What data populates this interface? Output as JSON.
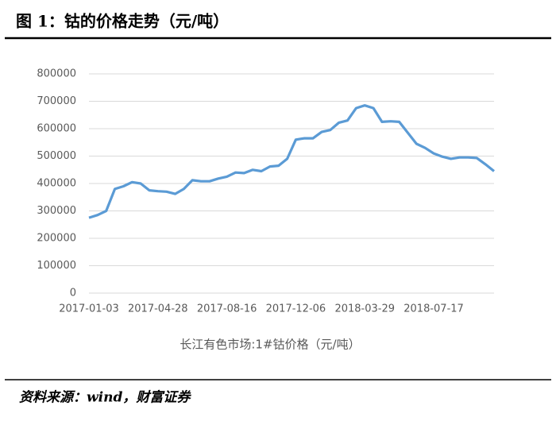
{
  "header": {
    "title": "图 1：钴的价格走势（元/吨）"
  },
  "chart_data": {
    "type": "line",
    "categories": [
      "2017-01-03",
      null,
      null,
      null,
      null,
      null,
      null,
      null,
      "2017-04-28",
      null,
      null,
      null,
      null,
      null,
      null,
      null,
      "2017-08-16",
      null,
      null,
      null,
      null,
      null,
      null,
      null,
      "2017-12-06",
      null,
      null,
      null,
      null,
      null,
      null,
      null,
      "2018-03-29",
      null,
      null,
      null,
      null,
      null,
      null,
      null,
      "2018-07-17",
      null,
      null,
      null,
      null,
      null,
      null,
      null
    ],
    "series": [
      {
        "name": "长江有色市场:1#钴价格（元/吨）",
        "color": "#5b9bd5",
        "values": [
          275000,
          285000,
          300000,
          380000,
          390000,
          405000,
          400000,
          375000,
          372000,
          370000,
          362000,
          380000,
          412000,
          408000,
          408000,
          418000,
          425000,
          440000,
          438000,
          450000,
          445000,
          462000,
          465000,
          490000,
          560000,
          565000,
          565000,
          588000,
          595000,
          622000,
          630000,
          675000,
          685000,
          675000,
          625000,
          627000,
          625000,
          585000,
          545000,
          530000,
          510000,
          498000,
          490000,
          495000,
          495000,
          493000,
          470000,
          445000
        ]
      }
    ],
    "ylim": [
      0,
      800000
    ],
    "yticks": [
      0,
      100000,
      200000,
      300000,
      400000,
      500000,
      600000,
      700000,
      800000
    ],
    "grid": true
  },
  "footer": {
    "source": "资料来源：wind，财富证券"
  }
}
